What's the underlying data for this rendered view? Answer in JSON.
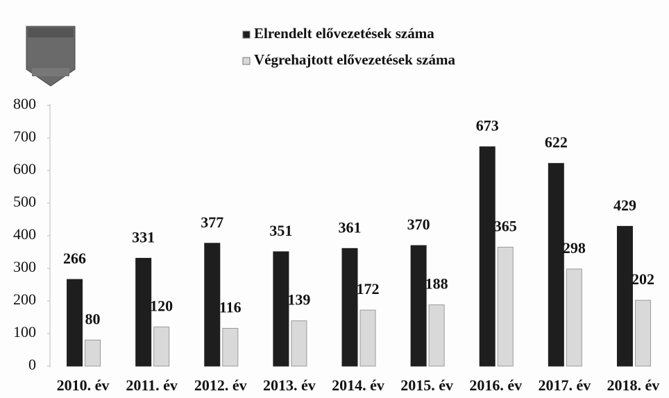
{
  "chart_data": {
    "type": "bar",
    "categories": [
      "2010. év",
      "2011. év",
      "2012. év",
      "2013. év",
      "2014. év",
      "2015. év",
      "2016. év",
      "2017. év",
      "2018. év"
    ],
    "series": [
      {
        "name": "Elrendelt elővezetések száma",
        "color": "#1e1e1e",
        "values": [
          266,
          331,
          377,
          351,
          361,
          370,
          673,
          622,
          429
        ]
      },
      {
        "name": "Végrehajtott elővezetések száma",
        "color": "#d9d9d9",
        "values": [
          80,
          120,
          116,
          139,
          172,
          188,
          365,
          298,
          202
        ]
      }
    ],
    "ylim": [
      0,
      800
    ],
    "yticks": [
      0,
      100,
      200,
      300,
      400,
      500,
      600,
      700,
      800
    ],
    "grid": false
  }
}
